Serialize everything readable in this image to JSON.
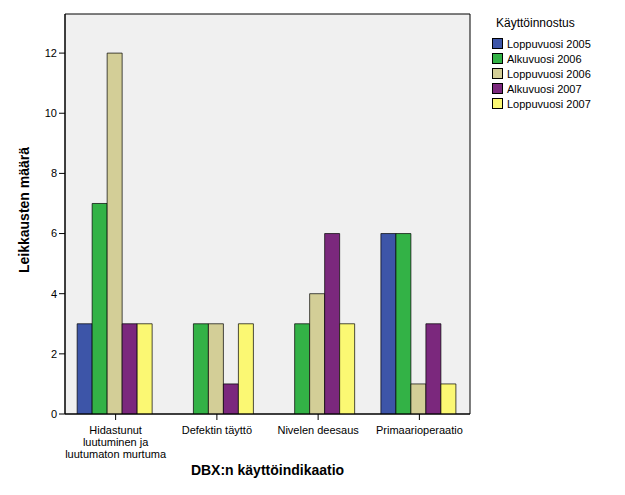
{
  "chart_data": {
    "type": "bar",
    "x_label": "DBX:n käyttöindikaatio",
    "y_label": "Leikkausten määrä",
    "legend_title": "Käyttöinnostus",
    "categories": [
      "Hidastunut luutuminen ja luutumaton murtuma",
      "Defektin täyttö",
      "Nivelen deesaus",
      "Primaarioperaatio"
    ],
    "series": [
      {
        "name": "Loppuvuosi 2005",
        "color": "#3d55a8",
        "values": [
          3,
          0,
          0,
          6
        ]
      },
      {
        "name": "Alkuvuosi 2006",
        "color": "#33b246",
        "values": [
          7,
          3,
          3,
          6
        ]
      },
      {
        "name": "Loppuvuosi 2006",
        "color": "#d3ce97",
        "values": [
          12,
          3,
          4,
          1
        ]
      },
      {
        "name": "Alkuvuosi 2007",
        "color": "#7b287d",
        "values": [
          3,
          1,
          6,
          3
        ]
      },
      {
        "name": "Loppuvuosi 2007",
        "color": "#fbf873",
        "values": [
          3,
          3,
          3,
          1
        ]
      }
    ],
    "ylim": [
      0,
      13.3
    ],
    "yticks": [
      0,
      2,
      4,
      6,
      8,
      10,
      12
    ],
    "grid": false,
    "legend": "right"
  }
}
